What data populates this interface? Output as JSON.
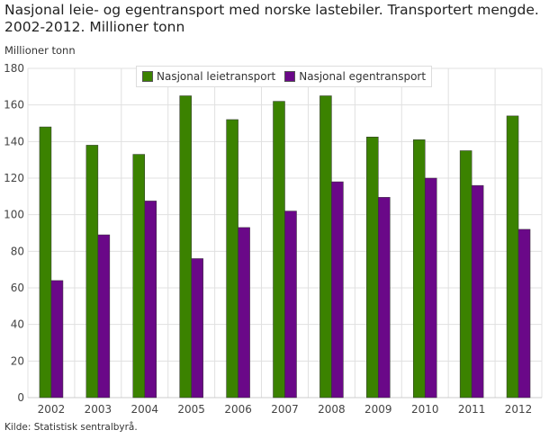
{
  "chart_data": {
    "type": "bar",
    "title": "Nasjonal leie- og egentransport med norske lastebiler. Transportert mengde. 2002-2012. Millioner tonn",
    "ylabel": "Millioner tonn",
    "xlabel": "",
    "ylim": [
      0,
      180
    ],
    "yticks": [
      0,
      20,
      40,
      60,
      80,
      100,
      120,
      140,
      160,
      180
    ],
    "grid": true,
    "legend_position": "top",
    "categories": [
      "2002",
      "2003",
      "2004",
      "2005",
      "2006",
      "2007",
      "2008",
      "2009",
      "2010",
      "2011",
      "2012"
    ],
    "series": [
      {
        "name": "Nasjonal leietransport",
        "color": "#3b8200",
        "values": [
          148,
          138,
          133,
          165,
          152,
          162,
          165,
          142.5,
          141,
          135,
          154
        ]
      },
      {
        "name": "Nasjonal egentransport",
        "color": "#6a0888",
        "values": [
          64,
          89,
          107.5,
          76,
          93,
          102,
          118,
          109.5,
          120,
          116,
          92
        ]
      }
    ]
  },
  "source": "Kilde: Statistisk sentralbyrå."
}
